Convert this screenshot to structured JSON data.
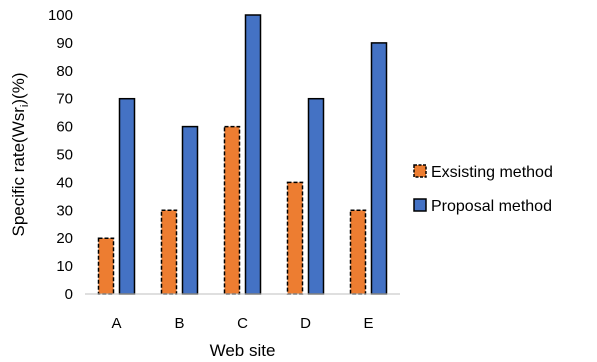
{
  "chart_data": {
    "type": "bar",
    "categories": [
      "A",
      "B",
      "C",
      "D",
      "E"
    ],
    "series": [
      {
        "name": "Exsisting method",
        "values": [
          20,
          30,
          60,
          40,
          30
        ],
        "color": "#ED7D31",
        "border": "dashed"
      },
      {
        "name": "Proposal method",
        "values": [
          70,
          60,
          100,
          70,
          90
        ],
        "color": "#4472C4",
        "border": "solid"
      }
    ],
    "xlabel": "Web site",
    "ylabel_main": "Specific rate(Wsr",
    "ylabel_sub": "i",
    "ylabel_tail": ")(%)",
    "ylim": [
      0,
      100
    ],
    "yticks": [
      "0",
      "10",
      "20",
      "30",
      "40",
      "50",
      "60",
      "70",
      "80",
      "90",
      "100"
    ],
    "grid": false,
    "legend_position": "right"
  }
}
